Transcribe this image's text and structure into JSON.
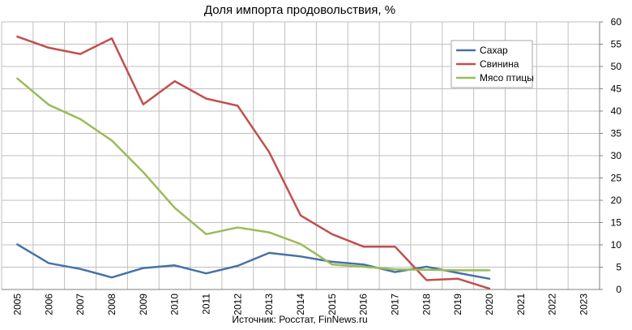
{
  "chart_data": {
    "type": "line",
    "title": "Доля импорта продовольствия, %",
    "source": "Источник: Росстат, FinNews.ru",
    "xlabel": "",
    "ylabel": "",
    "x": [
      "2005",
      "2006",
      "2007",
      "2008",
      "2009",
      "2010",
      "2011",
      "2012",
      "2013",
      "2014",
      "2015",
      "2016",
      "2017",
      "2018",
      "2019",
      "2020",
      "2021",
      "2022",
      "2023"
    ],
    "ylim": [
      0,
      60
    ],
    "yticks": [
      0,
      5,
      10,
      15,
      20,
      25,
      30,
      35,
      40,
      45,
      50,
      55,
      60
    ],
    "y_axis_side": "right",
    "grid": true,
    "legend_position": "top-right",
    "series": [
      {
        "name": "Сахар",
        "color": "#4572A7",
        "values": [
          10.1,
          5.9,
          4.6,
          2.7,
          4.8,
          5.4,
          3.6,
          5.3,
          8.2,
          7.4,
          6.2,
          5.6,
          3.9,
          5.1,
          3.7,
          2.4,
          null,
          null,
          null
        ]
      },
      {
        "name": "Свинина",
        "color": "#C0504D",
        "values": [
          56.7,
          54.2,
          52.8,
          56.3,
          41.5,
          46.7,
          42.8,
          41.2,
          30.8,
          16.6,
          12.4,
          9.6,
          9.6,
          2.1,
          2.4,
          0.2,
          null,
          null,
          null
        ]
      },
      {
        "name": "Мясо птицы",
        "color": "#9BBB59",
        "values": [
          47.3,
          41.4,
          38.2,
          33.4,
          26.3,
          18.3,
          12.4,
          13.9,
          12.8,
          10.2,
          5.6,
          5.1,
          4.5,
          4.4,
          4.3,
          4.3,
          null,
          null,
          null
        ]
      }
    ]
  }
}
